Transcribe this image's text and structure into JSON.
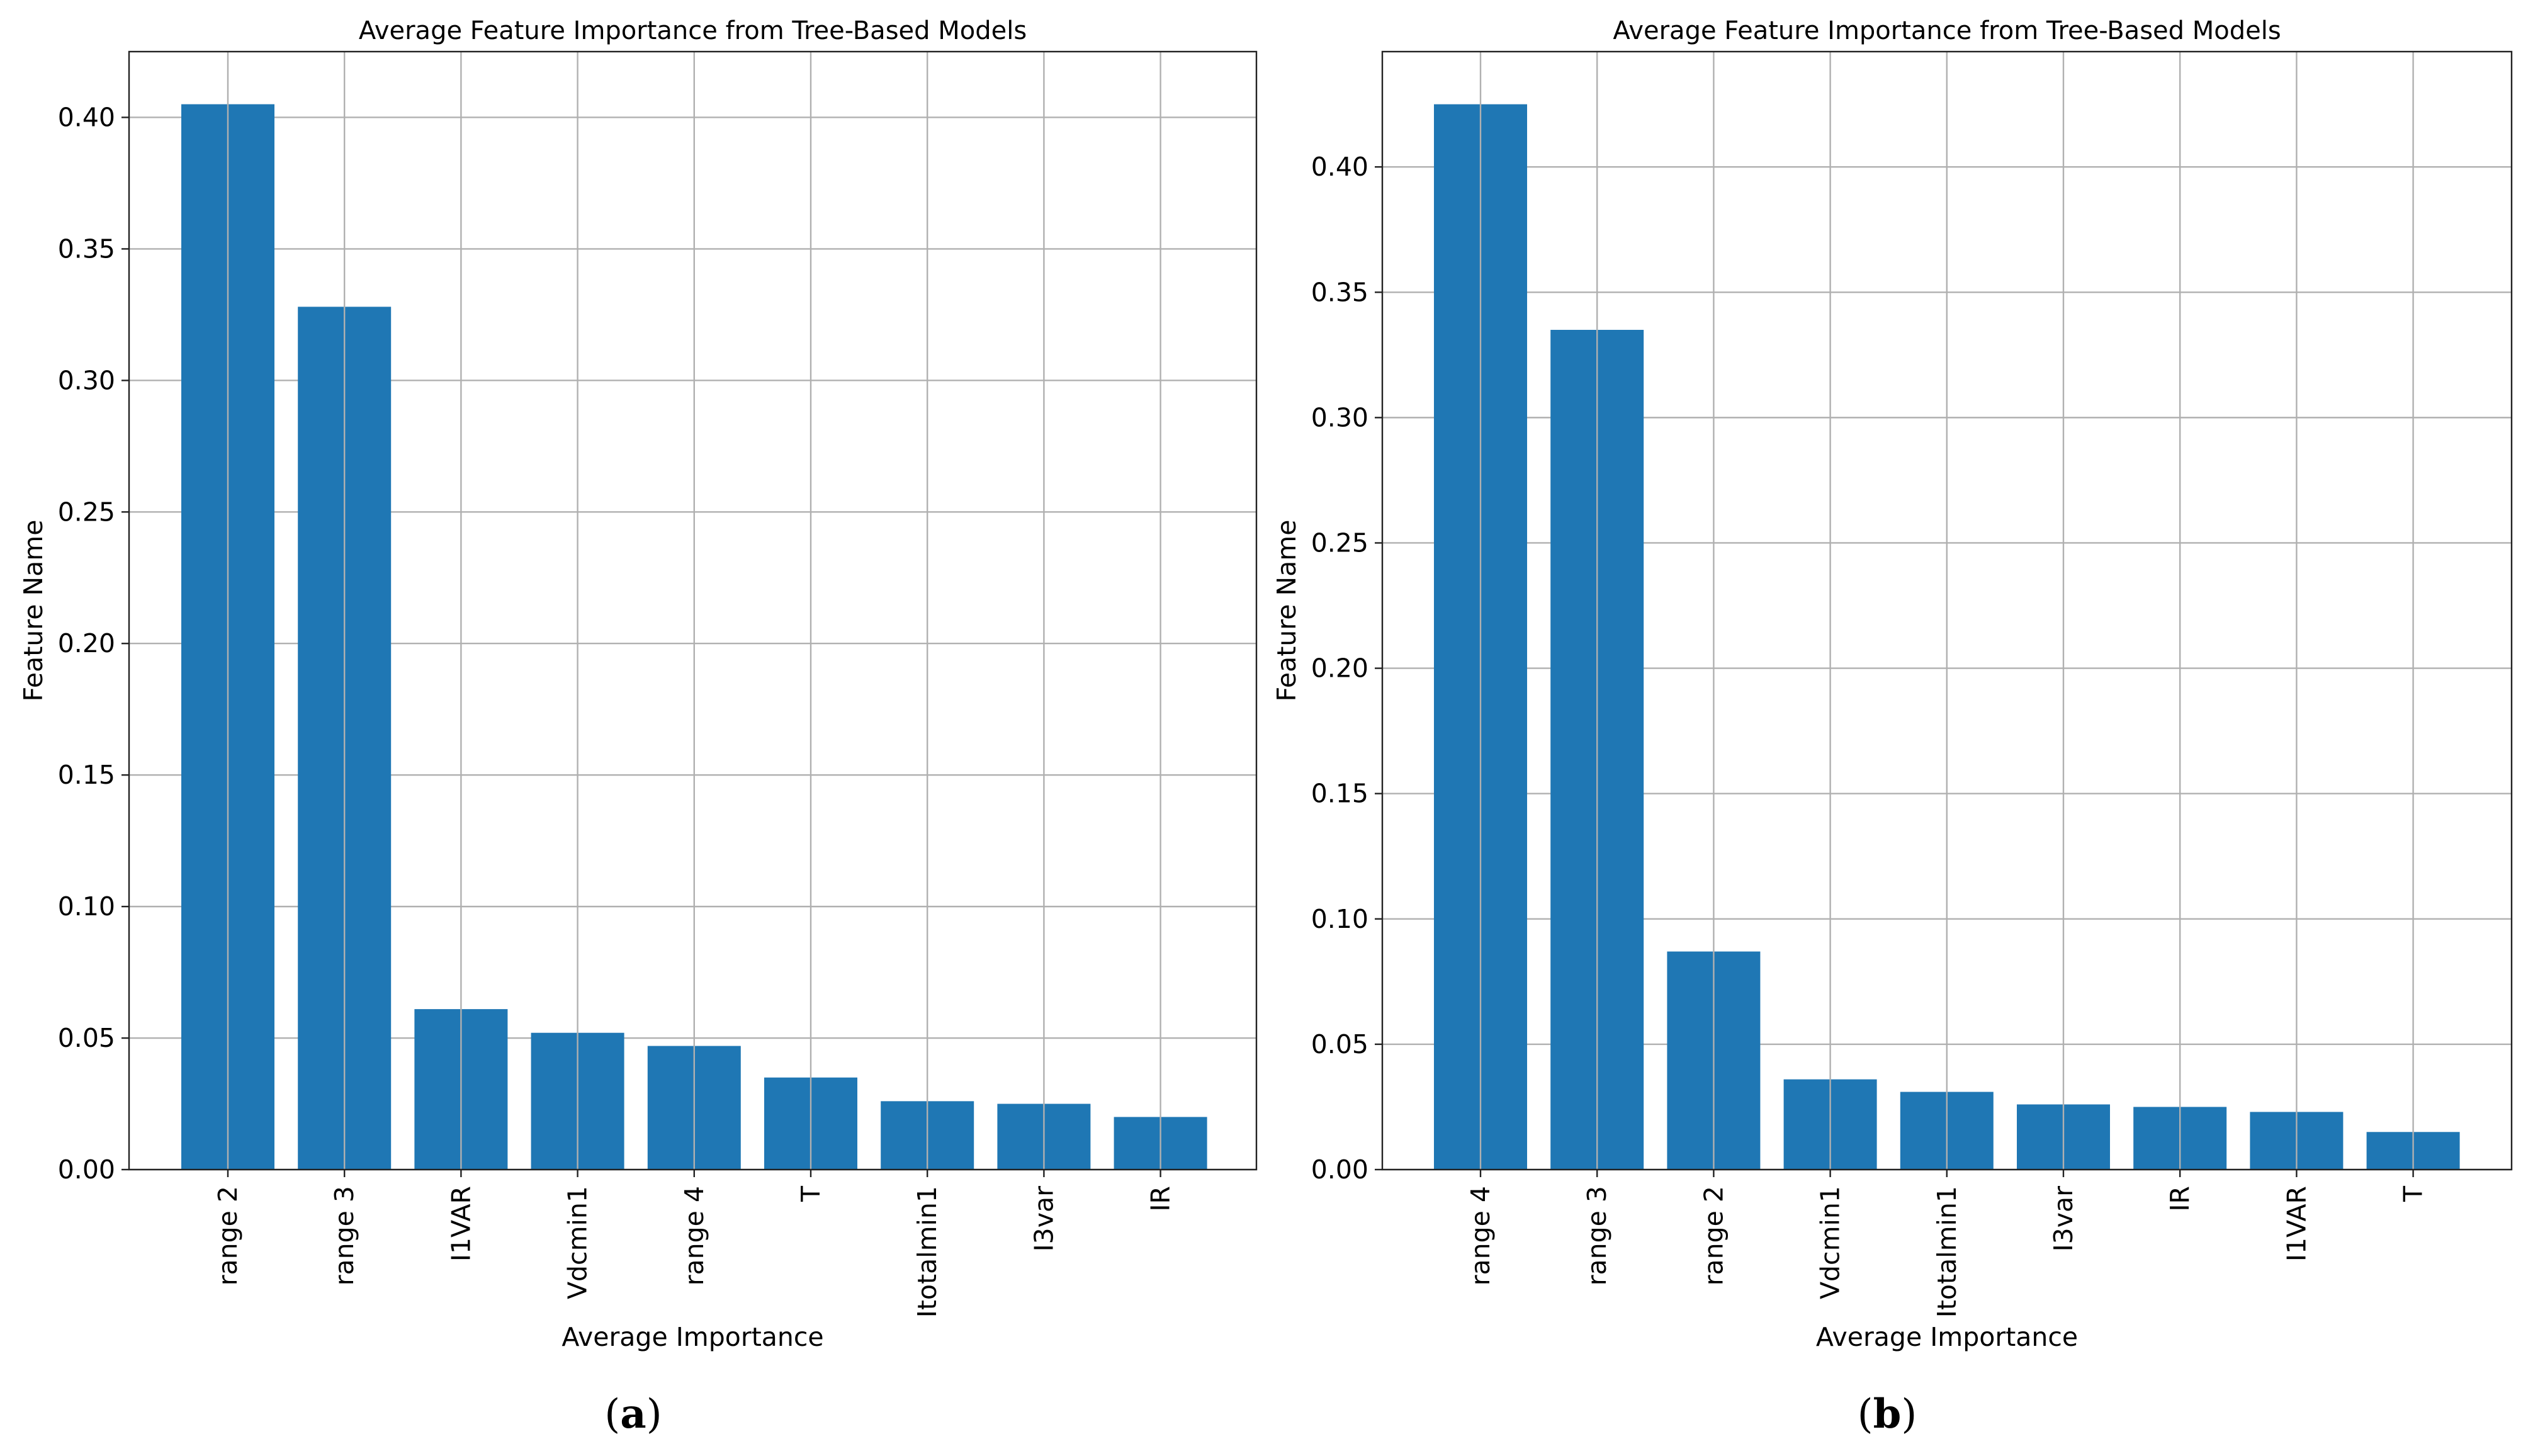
{
  "chart_data": [
    {
      "type": "bar",
      "title": "Average Feature Importance from Tree-Based Models",
      "xlabel": "Average Importance",
      "ylabel": "Feature Name",
      "categories": [
        "range 2",
        "range 3",
        "I1VAR",
        "Vdcmin1",
        "range 4",
        "T",
        "Itotalmin1",
        "I3var",
        "IR"
      ],
      "values": [
        0.405,
        0.328,
        0.061,
        0.052,
        0.047,
        0.035,
        0.026,
        0.025,
        0.02
      ],
      "ylim": [
        0,
        0.425
      ],
      "yticks": [
        "0.00",
        "0.05",
        "0.10",
        "0.15",
        "0.20",
        "0.25",
        "0.30",
        "0.35",
        "0.40"
      ],
      "grid": true,
      "bar_color": "#1f77b4",
      "panel_letter": "a",
      "panel_open": "(",
      "panel_close": ")"
    },
    {
      "type": "bar",
      "title": "Average Feature Importance from Tree-Based Models",
      "xlabel": "Average Importance",
      "ylabel": "Feature Name",
      "categories": [
        "range 4",
        "range 3",
        "range 2",
        "Vdcmin1",
        "Itotalmin1",
        "I3var",
        "IR",
        "I1VAR",
        "T"
      ],
      "values": [
        0.425,
        0.335,
        0.087,
        0.036,
        0.031,
        0.026,
        0.025,
        0.023,
        0.015
      ],
      "ylim": [
        0,
        0.446
      ],
      "yticks": [
        "0.00",
        "0.05",
        "0.10",
        "0.15",
        "0.20",
        "0.25",
        "0.30",
        "0.35",
        "0.40"
      ],
      "grid": true,
      "bar_color": "#1f77b4",
      "panel_letter": "b",
      "panel_open": "(",
      "panel_close": ")"
    }
  ]
}
